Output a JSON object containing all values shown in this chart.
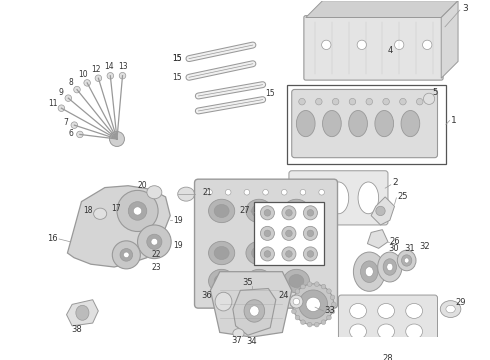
{
  "bg_color": "#ffffff",
  "lc": "#999999",
  "tc": "#333333",
  "part_fill": "#e0e0e0",
  "part_dark": "#c8c8c8",
  "part_light": "#eeeeee"
}
